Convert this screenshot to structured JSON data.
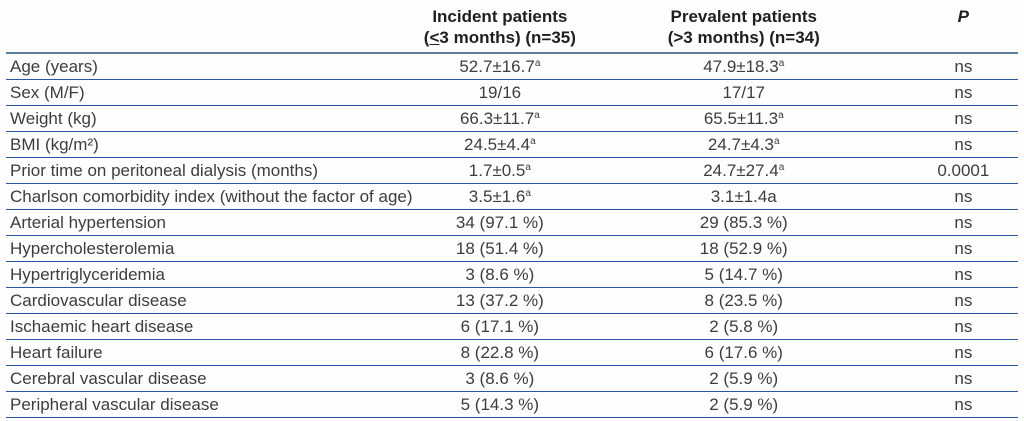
{
  "table": {
    "colors": {
      "row_rule_blue": "#2a56a5",
      "header_rule_gray_blue": "#5f7e97",
      "body_text": "#3d3d3d",
      "header_text": "#1f1f1f",
      "background": "#fefefe"
    },
    "header": {
      "label_col": "",
      "incident_line1": "Incident patients",
      "incident_line2": "(≤3 months) (n=35)",
      "prevalent_line1": "Prevalent patients",
      "prevalent_line2": "(>3 months) (n=34)",
      "p_label": "P"
    },
    "rows": [
      {
        "label": "Age (years)",
        "incident": "52.7±16.7",
        "incident_sup": "a",
        "prevalent": "47.9±18.3",
        "prevalent_sup": "a",
        "p": "ns"
      },
      {
        "label": "Sex (M/F)",
        "incident": "19/16",
        "incident_sup": "",
        "prevalent": "17/17",
        "prevalent_sup": "",
        "p": "ns"
      },
      {
        "label": "Weight (kg)",
        "incident": "66.3±11.7",
        "incident_sup": "a",
        "prevalent": "65.5±11.3",
        "prevalent_sup": "a",
        "p": "ns"
      },
      {
        "label": "BMI (kg/m²)",
        "incident": "24.5±4.4",
        "incident_sup": "a",
        "prevalent": "24.7±4.3",
        "prevalent_sup": "a",
        "p": "ns"
      },
      {
        "label": "Prior time on peritoneal dialysis (months)",
        "incident": "1.7±0.5",
        "incident_sup": "a",
        "prevalent": "24.7±27.4",
        "prevalent_sup": "a",
        "p": "0.0001"
      },
      {
        "label": "Charlson comorbidity index (without the factor of age)",
        "incident": "3.5±1.6",
        "incident_sup": "a",
        "prevalent": "3.1±1.4a",
        "prevalent_sup": "",
        "p": "ns"
      },
      {
        "label": "Arterial hypertension",
        "incident": "34 (97.1 %)",
        "incident_sup": "",
        "prevalent": "29 (85.3 %)",
        "prevalent_sup": "",
        "p": "ns"
      },
      {
        "label": "Hypercholesterolemia",
        "incident": "18 (51.4 %)",
        "incident_sup": "",
        "prevalent": "18 (52.9 %)",
        "prevalent_sup": "",
        "p": "ns"
      },
      {
        "label": "Hypertriglyceridemia",
        "incident": "3 (8.6 %)",
        "incident_sup": "",
        "prevalent": "5 (14.7 %)",
        "prevalent_sup": "",
        "p": "ns"
      },
      {
        "label": "Cardiovascular disease",
        "incident": "13 (37.2 %)",
        "incident_sup": "",
        "prevalent": "8 (23.5 %)",
        "prevalent_sup": "",
        "p": "ns"
      },
      {
        "label": "Ischaemic heart disease",
        "incident": "6 (17.1 %)",
        "incident_sup": "",
        "prevalent": "2 (5.8 %)",
        "prevalent_sup": "",
        "p": "ns"
      },
      {
        "label": "Heart failure",
        "incident": "8 (22.8 %)",
        "incident_sup": "",
        "prevalent": "6 (17.6 %)",
        "prevalent_sup": "",
        "p": "ns"
      },
      {
        "label": "Cerebral vascular disease",
        "incident": "3 (8.6 %)",
        "incident_sup": "",
        "prevalent": "2 (5.9 %)",
        "prevalent_sup": "",
        "p": "ns"
      },
      {
        "label": "Peripheral vascular disease",
        "incident": "5 (14.3 %)",
        "incident_sup": "",
        "prevalent": "2 (5.9 %)",
        "prevalent_sup": "",
        "p": "ns"
      }
    ]
  }
}
